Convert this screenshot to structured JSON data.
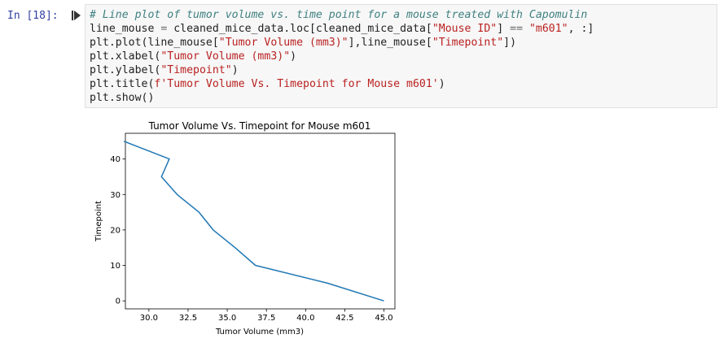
{
  "cell": {
    "prompt": "In [18]:",
    "code": {
      "line1_comment": "# Line plot of tumor volume vs. time point for a mouse treated with Capomulin",
      "line2_a": "line_mouse ",
      "line2_eq": "=",
      "line2_b": " cleaned_mice_data.loc[cleaned_mice_data[",
      "line2_s1": "\"Mouse ID\"",
      "line2_c": "] ",
      "line2_eqeq": "==",
      "line2_d": " ",
      "line2_s2": "\"m601\"",
      "line2_e": ", :]",
      "line3_a": "plt.plot(line_mouse[",
      "line3_s1": "\"Tumor Volume (mm3)\"",
      "line3_b": "],line_mouse[",
      "line3_s2": "\"Timepoint\"",
      "line3_c": "])",
      "line4_a": "plt.xlabel(",
      "line4_s": "\"Tumor Volume (mm3)\"",
      "line4_b": ")",
      "line5_a": "plt.ylabel(",
      "line5_s": "\"Timepoint\"",
      "line5_b": ")",
      "line6_a": "plt.title(",
      "line6_s": "f'Tumor Volume Vs. Timepoint for Mouse m601'",
      "line6_b": ")",
      "line7": "plt.show()"
    }
  },
  "chart_data": {
    "type": "line",
    "title": "Tumor Volume Vs. Timepoint for Mouse m601",
    "xlabel": "Tumor Volume (mm3)",
    "ylabel": "Timepoint",
    "xlim": [
      28.5,
      45.7
    ],
    "ylim": [
      -2.25,
      47.25
    ],
    "xticks": [
      30.0,
      32.5,
      35.0,
      37.5,
      40.0,
      42.5,
      45.0
    ],
    "xtick_labels": [
      "30.0",
      "32.5",
      "35.0",
      "37.5",
      "40.0",
      "42.5",
      "45.0"
    ],
    "yticks": [
      0,
      10,
      20,
      30,
      40
    ],
    "ytick_labels": [
      "0",
      "10",
      "20",
      "30",
      "40"
    ],
    "grid": false,
    "series": [
      {
        "color": "#1f77b4",
        "x": [
          45.0,
          41.4,
          36.8,
          35.5,
          34.1,
          33.2,
          31.8,
          30.8,
          31.3,
          28.4
        ],
        "y": [
          0,
          5,
          10,
          15,
          20,
          25,
          30,
          35,
          40,
          45
        ]
      }
    ]
  }
}
